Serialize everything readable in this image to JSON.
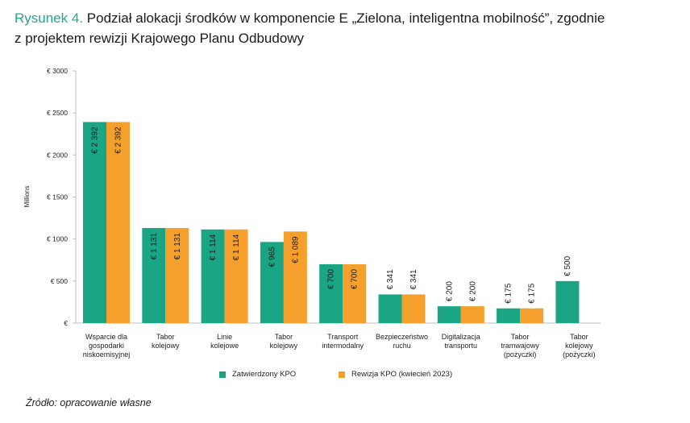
{
  "figure": {
    "label": "Rysunek 4.",
    "title_line1": "Podział alokacji środków w komponencie E „Zielona, inteligentna mobilność”, zgodnie",
    "title_line2": "z projektem rewizji Krajowego Planu Odbudowy",
    "source": "Źródło: opracowanie własne"
  },
  "colors": {
    "approved": "#1aa584",
    "revision": "#f5a02c",
    "axis": "#bfbfbf"
  },
  "chart_data": {
    "type": "bar",
    "ylabel": "Millions",
    "ylim": [
      0,
      3000
    ],
    "yticks": [
      0,
      500,
      1000,
      1500,
      2000,
      2500,
      3000
    ],
    "ytick_labels": [
      "€",
      "€ 500",
      "€ 1000",
      "€ 1500",
      "€ 2000",
      "€ 2500",
      "€ 3000"
    ],
    "grid": false,
    "legend_position": "bottom",
    "categories": [
      [
        "Wsparcie dla",
        "gospodarki",
        "niskoemisyjnej"
      ],
      [
        "Tabor",
        "kolejowy"
      ],
      [
        "Linie",
        "kolejowe"
      ],
      [
        "Tabor",
        "kolejowy"
      ],
      [
        "Transport",
        "intermodalny"
      ],
      [
        "Bezpieczeństwo",
        "ruchu"
      ],
      [
        "Digitalizacja",
        "transportu"
      ],
      [
        "Tabor",
        "tramwajowy",
        "(pożyczki)"
      ],
      [
        "Tabor",
        "kolejowy",
        "(pożyczki)"
      ]
    ],
    "series": [
      {
        "name": "Zatwierdzony KPO",
        "values": [
          2392,
          1131,
          1114,
          965,
          700,
          341,
          200,
          175,
          500
        ],
        "labels": [
          "€ 2 392",
          "€ 1 131",
          "€ 1 114",
          "€ 965",
          "€ 700",
          "€ 341",
          "€ 200",
          "€ 175",
          "€ 500"
        ]
      },
      {
        "name": "Rewizja KPO (kwiecień 2023)",
        "values": [
          2392,
          1131,
          1114,
          1089,
          700,
          341,
          200,
          175,
          null
        ],
        "labels": [
          "€ 2 392",
          "€ 1 131",
          "€ 1 114",
          "€ 1 089",
          "€ 700",
          "€ 341",
          "€ 200",
          "€ 175",
          null
        ]
      }
    ]
  }
}
